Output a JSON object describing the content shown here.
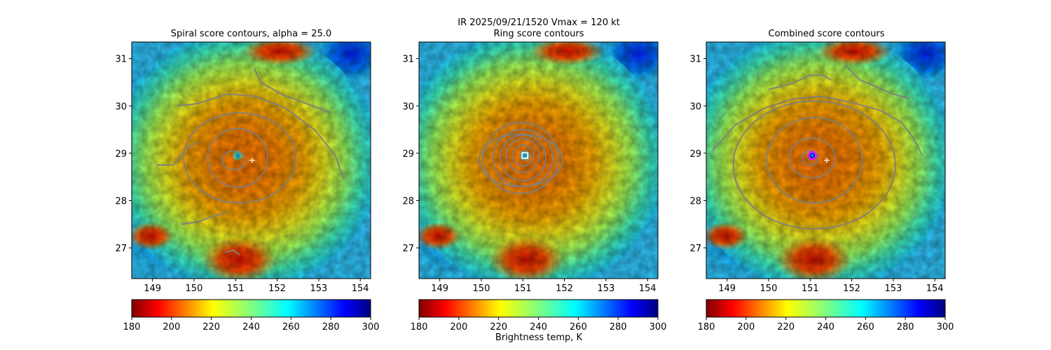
{
  "suptitle": "IR  2025/09/21/1520    Vmax = 120 kt",
  "colorbar_label": "Brightness temp, K",
  "colors": {
    "contour": "#7f7f7f",
    "center_marker": "#ffffff",
    "target_circle_outer": "#ff00ff",
    "target_circle_inner": "#0000ff",
    "colormap_name": "jet_r"
  },
  "chart_data": [
    {
      "type": "heatmap",
      "title": "Spiral score contours, alpha = 25.0",
      "xlim": [
        148.5,
        154.25
      ],
      "ylim": [
        26.35,
        31.35
      ],
      "xticks": [
        149,
        150,
        151,
        152,
        153,
        154
      ],
      "yticks": [
        27,
        28,
        29,
        30,
        31
      ],
      "colorbar": {
        "min": 180,
        "max": 300,
        "ticks": [
          180,
          200,
          220,
          240,
          260,
          280,
          300
        ],
        "cmap": "jet_r"
      },
      "eye_center": {
        "lon": 151.05,
        "lat": 28.95
      },
      "markers": [
        {
          "shape": "plus",
          "lon": 151.4,
          "lat": 28.85
        }
      ],
      "contours": [
        {
          "kind": "ellipse",
          "lon": 150.95,
          "lat": 28.85,
          "rlon": 0.28,
          "rlat": 0.2
        },
        {
          "kind": "ellipse",
          "lon": 151.05,
          "lat": 28.9,
          "rlon": 0.72,
          "rlat": 0.62
        },
        {
          "kind": "ellipse",
          "lon": 151.1,
          "lat": 28.9,
          "rlon": 1.35,
          "rlat": 0.95
        },
        {
          "kind": "path",
          "lon": [
            149.6,
            150.1,
            150.8,
            151.5,
            152.2,
            152.9,
            153.4,
            153.6
          ],
          "lat": [
            30.0,
            30.05,
            30.25,
            30.2,
            29.95,
            29.5,
            28.95,
            28.45
          ]
        },
        {
          "kind": "path",
          "lon": [
            149.1,
            149.5,
            149.6,
            149.8,
            150.1
          ],
          "lat": [
            28.75,
            28.75,
            28.85,
            29.1,
            29.25
          ]
        },
        {
          "kind": "path",
          "lon": [
            151.45,
            151.6,
            152.1,
            152.7,
            153.3
          ],
          "lat": [
            30.8,
            30.5,
            30.25,
            30.05,
            29.85
          ]
        },
        {
          "kind": "path",
          "lon": [
            150.75,
            150.95,
            151.1
          ],
          "lat": [
            26.9,
            26.95,
            26.85
          ]
        },
        {
          "kind": "path",
          "lon": [
            149.7,
            150.1,
            150.4,
            150.8
          ],
          "lat": [
            27.5,
            27.55,
            27.65,
            27.75
          ]
        }
      ]
    },
    {
      "type": "heatmap",
      "title": "Ring score contours",
      "xlim": [
        148.5,
        154.25
      ],
      "ylim": [
        26.35,
        31.35
      ],
      "xticks": [
        149,
        150,
        151,
        152,
        153,
        154
      ],
      "yticks": [
        27,
        28,
        29,
        30,
        31
      ],
      "colorbar": {
        "min": 180,
        "max": 300,
        "ticks": [
          180,
          200,
          220,
          240,
          260,
          280,
          300
        ],
        "cmap": "jet_r"
      },
      "eye_center": {
        "lon": 151.05,
        "lat": 28.95
      },
      "markers": [
        {
          "shape": "square",
          "lon": 151.05,
          "lat": 28.95
        }
      ],
      "contours": [
        {
          "kind": "ellipse",
          "lon": 151.05,
          "lat": 28.95,
          "rlon": 0.12,
          "rlat": 0.1
        },
        {
          "kind": "ellipse",
          "lon": 151.0,
          "lat": 28.95,
          "rlon": 0.25,
          "rlat": 0.22
        },
        {
          "kind": "ellipse",
          "lon": 151.0,
          "lat": 28.95,
          "rlon": 0.4,
          "rlat": 0.35
        },
        {
          "kind": "ellipse",
          "lon": 151.0,
          "lat": 28.9,
          "rlon": 0.55,
          "rlat": 0.48
        },
        {
          "kind": "ellipse",
          "lon": 151.0,
          "lat": 28.9,
          "rlon": 0.72,
          "rlat": 0.6
        },
        {
          "kind": "ellipse",
          "lon": 150.95,
          "lat": 28.9,
          "rlon": 0.9,
          "rlat": 0.75
        },
        {
          "kind": "ellipse",
          "lon": 150.95,
          "lat": 28.85,
          "rlon": 1.0,
          "rlat": 0.55
        }
      ]
    },
    {
      "type": "heatmap",
      "title": "Combined score contours",
      "xlim": [
        148.5,
        154.25
      ],
      "ylim": [
        26.35,
        31.35
      ],
      "xticks": [
        149,
        150,
        151,
        152,
        153,
        154
      ],
      "yticks": [
        27,
        28,
        29,
        30,
        31
      ],
      "colorbar": {
        "min": 180,
        "max": 300,
        "ticks": [
          180,
          200,
          220,
          240,
          260,
          280,
          300
        ],
        "cmap": "jet_r"
      },
      "eye_center": {
        "lon": 151.05,
        "lat": 28.95
      },
      "markers": [
        {
          "shape": "plus",
          "lon": 151.4,
          "lat": 28.85
        },
        {
          "shape": "target",
          "lon": 151.05,
          "lat": 28.95
        }
      ],
      "contours": [
        {
          "kind": "ellipse",
          "lon": 151.0,
          "lat": 28.9,
          "rlon": 0.2,
          "rlat": 0.15
        },
        {
          "kind": "ellipse",
          "lon": 151.05,
          "lat": 28.9,
          "rlon": 0.55,
          "rlat": 0.42
        },
        {
          "kind": "ellipse",
          "lon": 151.1,
          "lat": 28.85,
          "rlon": 1.15,
          "rlat": 0.9
        },
        {
          "kind": "ellipse",
          "lon": 151.1,
          "lat": 28.75,
          "rlon": 1.95,
          "rlat": 1.35
        },
        {
          "kind": "path",
          "lon": [
            148.65,
            149.2,
            149.9,
            150.6,
            151.3,
            152.1,
            152.7,
            153.2,
            153.5,
            153.7
          ],
          "lat": [
            29.05,
            29.6,
            29.95,
            30.15,
            30.2,
            30.05,
            29.9,
            29.65,
            29.3,
            28.95
          ]
        },
        {
          "kind": "path",
          "lon": [
            150.0,
            150.5,
            151.0,
            151.3,
            151.5
          ],
          "lat": [
            30.35,
            30.45,
            30.65,
            30.65,
            30.55
          ]
        },
        {
          "kind": "path",
          "lon": [
            151.85,
            152.2,
            152.6,
            153.0,
            153.4
          ],
          "lat": [
            30.85,
            30.55,
            30.4,
            30.25,
            30.15
          ]
        }
      ]
    }
  ]
}
